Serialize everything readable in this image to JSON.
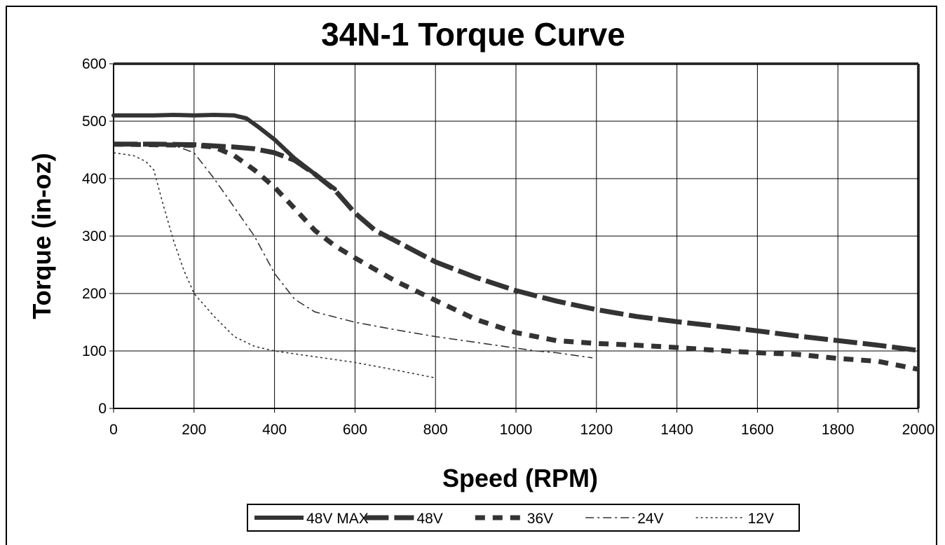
{
  "chart_data": {
    "type": "line",
    "title": "34N-1 Torque Curve",
    "xlabel": "Speed (RPM)",
    "ylabel": "Torque (in-oz)",
    "xlim": [
      0,
      2000
    ],
    "ylim": [
      0,
      600
    ],
    "x_ticks": [
      "0",
      "200",
      "400",
      "600",
      "800",
      "1000",
      "1200",
      "1400",
      "1600",
      "1800",
      "2000"
    ],
    "y_ticks": [
      "0",
      "100",
      "200",
      "300",
      "400",
      "500",
      "600"
    ],
    "grid": true,
    "legend_position": "bottom",
    "series": [
      {
        "name": "48V MAX",
        "style": "solid-thick",
        "points": [
          [
            0,
            510
          ],
          [
            100,
            510
          ],
          [
            150,
            511
          ],
          [
            200,
            510
          ],
          [
            250,
            511
          ],
          [
            300,
            510
          ],
          [
            330,
            505
          ],
          [
            360,
            490
          ],
          [
            400,
            468
          ],
          [
            450,
            435
          ],
          [
            500,
            408
          ],
          [
            550,
            382
          ]
        ]
      },
      {
        "name": "48V",
        "style": "long-dash-thick",
        "points": [
          [
            0,
            460
          ],
          [
            100,
            460
          ],
          [
            200,
            459
          ],
          [
            300,
            455
          ],
          [
            350,
            452
          ],
          [
            400,
            445
          ],
          [
            450,
            432
          ],
          [
            500,
            408
          ],
          [
            550,
            380
          ],
          [
            600,
            340
          ],
          [
            650,
            310
          ],
          [
            700,
            292
          ],
          [
            800,
            255
          ],
          [
            900,
            228
          ],
          [
            1000,
            205
          ],
          [
            1100,
            187
          ],
          [
            1200,
            172
          ],
          [
            1300,
            160
          ],
          [
            1400,
            151
          ],
          [
            1500,
            143
          ],
          [
            1600,
            135
          ],
          [
            1700,
            126
          ],
          [
            1800,
            118
          ],
          [
            1900,
            110
          ],
          [
            2000,
            101
          ]
        ]
      },
      {
        "name": "36V",
        "style": "dash-thick",
        "points": [
          [
            0,
            460
          ],
          [
            100,
            459
          ],
          [
            200,
            458
          ],
          [
            250,
            455
          ],
          [
            300,
            440
          ],
          [
            350,
            415
          ],
          [
            400,
            385
          ],
          [
            450,
            348
          ],
          [
            500,
            310
          ],
          [
            550,
            283
          ],
          [
            600,
            262
          ],
          [
            700,
            222
          ],
          [
            800,
            188
          ],
          [
            900,
            155
          ],
          [
            1000,
            132
          ],
          [
            1100,
            118
          ],
          [
            1200,
            113
          ],
          [
            1300,
            110
          ],
          [
            1400,
            106
          ],
          [
            1500,
            101
          ],
          [
            1600,
            97
          ],
          [
            1700,
            94
          ],
          [
            1800,
            87
          ],
          [
            1900,
            82
          ],
          [
            2000,
            68
          ]
        ]
      },
      {
        "name": "24V",
        "style": "dash-dot-thin",
        "points": [
          [
            0,
            460
          ],
          [
            100,
            460
          ],
          [
            150,
            458
          ],
          [
            200,
            445
          ],
          [
            250,
            400
          ],
          [
            300,
            350
          ],
          [
            350,
            300
          ],
          [
            400,
            235
          ],
          [
            450,
            190
          ],
          [
            500,
            168
          ],
          [
            600,
            150
          ],
          [
            700,
            137
          ],
          [
            800,
            125
          ],
          [
            900,
            115
          ],
          [
            1000,
            105
          ],
          [
            1050,
            100
          ],
          [
            1100,
            97
          ],
          [
            1190,
            88
          ]
        ]
      },
      {
        "name": "12V",
        "style": "dotted-thin",
        "points": [
          [
            0,
            445
          ],
          [
            50,
            440
          ],
          [
            80,
            430
          ],
          [
            100,
            415
          ],
          [
            125,
            350
          ],
          [
            150,
            290
          ],
          [
            175,
            240
          ],
          [
            200,
            200
          ],
          [
            250,
            160
          ],
          [
            300,
            125
          ],
          [
            350,
            108
          ],
          [
            400,
            100
          ],
          [
            500,
            90
          ],
          [
            600,
            80
          ],
          [
            700,
            67
          ],
          [
            800,
            53
          ]
        ]
      }
    ]
  }
}
